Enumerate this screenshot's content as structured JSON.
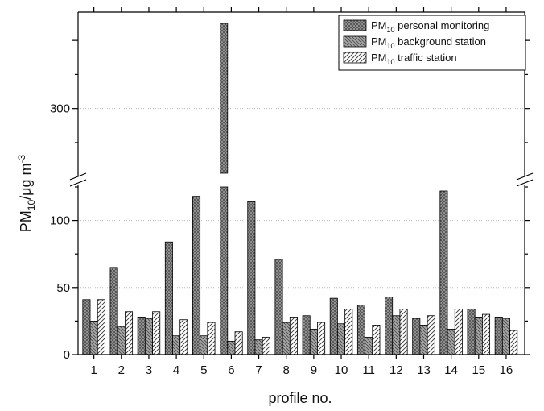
{
  "chart_data": {
    "type": "bar",
    "xlabel": "profile no.",
    "ylabel": {
      "base": "PM",
      "sub": "10",
      "unit": "/μg m",
      "sup": "-3"
    },
    "categories": [
      "1",
      "2",
      "3",
      "4",
      "5",
      "6",
      "7",
      "8",
      "9",
      "10",
      "11",
      "12",
      "13",
      "14",
      "15",
      "16"
    ],
    "series": [
      {
        "name": {
          "base": "PM",
          "sub": "10",
          "rest": " personal monitoring"
        },
        "pattern": "crosshatch",
        "values": [
          41,
          65,
          28,
          84,
          118,
          425,
          114,
          71,
          29,
          42,
          37,
          43,
          27,
          122,
          34,
          28
        ]
      },
      {
        "name": {
          "base": "PM",
          "sub": "10",
          "rest": " background station"
        },
        "pattern": "backslash",
        "values": [
          25,
          21,
          27,
          14,
          14,
          10,
          11,
          24,
          19,
          23,
          13,
          29,
          22,
          19,
          28,
          27
        ]
      },
      {
        "name": {
          "base": "PM",
          "sub": "10",
          "rest": " traffic station"
        },
        "pattern": "slash",
        "values": [
          41,
          32,
          32,
          26,
          24,
          17,
          13,
          28,
          24,
          34,
          22,
          34,
          29,
          34,
          30,
          18
        ]
      }
    ],
    "ylim_lower": [
      0,
      125
    ],
    "ylim_upper": [
      205,
      425
    ],
    "yticks_lower": [
      0,
      50,
      100
    ],
    "yticks_upper": [
      300
    ],
    "axis_break": true,
    "grid": "dotted horizontal",
    "legend_position": "top-right",
    "colors": {
      "personal": "#555555",
      "background": "#9a9a9a",
      "traffic": "#ffffff"
    }
  }
}
